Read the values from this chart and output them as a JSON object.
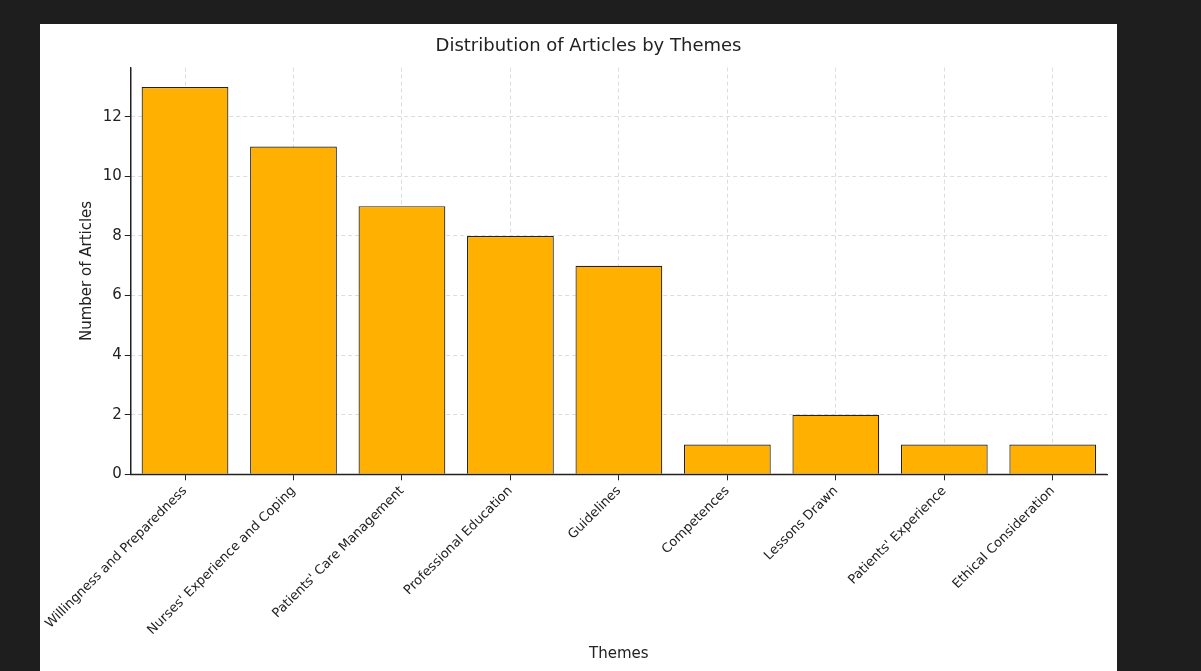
{
  "chart_data": {
    "type": "bar",
    "title": "Distribution of Articles by Themes",
    "xlabel": "Themes",
    "ylabel": "Number of Articles",
    "categories": [
      "Willingness and Preparedness",
      "Nurses' Experience and Coping",
      "Patients' Care Management",
      "Professional Education",
      "Guidelines",
      "Competences",
      "Lessons Drawn",
      "Patients' Experience",
      "Ethical Consideration"
    ],
    "values": [
      13,
      11,
      9,
      8,
      7,
      1,
      2,
      1,
      1
    ],
    "color": "#ffb000",
    "ylim": [
      0,
      13.65
    ],
    "yticks": [
      0,
      2,
      4,
      6,
      8,
      10,
      12
    ],
    "grid": true
  }
}
